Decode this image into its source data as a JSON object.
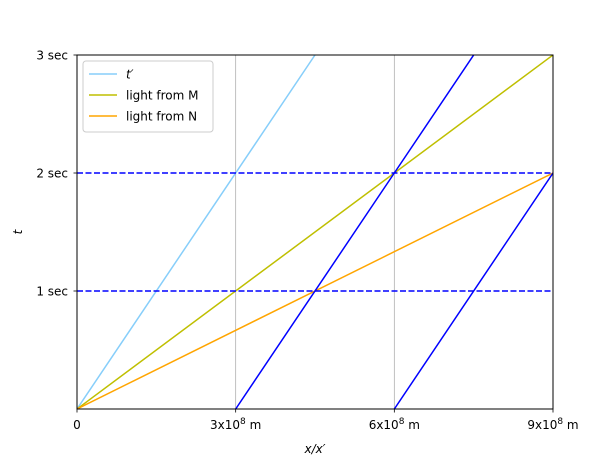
{
  "chart_data": {
    "type": "line",
    "xlabel": "x/x′",
    "ylabel": "t",
    "xlim": [
      0,
      900000000
    ],
    "ylim": [
      0,
      3
    ],
    "x_ticks": [
      {
        "value": 0,
        "label": "0"
      },
      {
        "value": 300000000,
        "label": "3x10^8 m"
      },
      {
        "value": 600000000,
        "label": "6x10^8 m"
      },
      {
        "value": 900000000,
        "label": "9x10^8 m"
      }
    ],
    "y_ticks": [
      {
        "value": 1,
        "label": "1 sec"
      },
      {
        "value": 2,
        "label": "2 sec"
      },
      {
        "value": 3,
        "label": "3 sec"
      }
    ],
    "grid": "vertical lines at x ticks",
    "legend_position": "top-left",
    "series": [
      {
        "name": "t′",
        "color": "#87cefa",
        "style": "solid",
        "x": [
          0,
          450000000
        ],
        "y": [
          0,
          3
        ]
      },
      {
        "name": "light from M",
        "color": "#bfbf00",
        "style": "solid",
        "x": [
          0,
          900000000
        ],
        "y": [
          0,
          3
        ]
      },
      {
        "name": "light from N",
        "color": "#ffa500",
        "style": "solid",
        "x": [
          0,
          900000000
        ],
        "y": [
          0,
          2
        ]
      },
      {
        "color": "#0000ff",
        "style": "solid",
        "x": [
          300000000,
          600000000
        ],
        "y": [
          0,
          2
        ]
      },
      {
        "color": "#0000ff",
        "style": "solid",
        "x": [
          600000000,
          900000000
        ],
        "y": [
          2,
          4
        ]
      },
      {
        "color": "#0000ff",
        "style": "solid",
        "x": [
          600000000,
          900000000
        ],
        "y": [
          0,
          2
        ]
      },
      {
        "color": "#0000ff",
        "style": "dashed",
        "x": [
          0,
          900000000
        ],
        "y": [
          1,
          1
        ]
      },
      {
        "color": "#0000ff",
        "style": "dashed",
        "x": [
          0,
          900000000
        ],
        "y": [
          2,
          2
        ]
      }
    ]
  }
}
